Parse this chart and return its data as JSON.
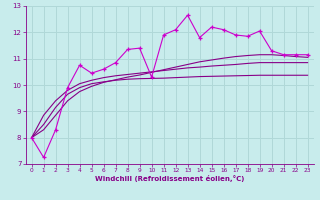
{
  "xlabel": "Windchill (Refroidissement éolien,°C)",
  "bg_color": "#c8ecec",
  "grid_color": "#b0d8d8",
  "line_color": "#cc00cc",
  "line_color2": "#880088",
  "x_data": [
    0,
    1,
    2,
    3,
    4,
    5,
    6,
    7,
    8,
    9,
    10,
    11,
    12,
    13,
    14,
    15,
    16,
    17,
    18,
    19,
    20,
    21,
    22,
    23
  ],
  "y_scatter": [
    8.0,
    7.25,
    8.3,
    9.9,
    10.75,
    10.45,
    10.6,
    10.85,
    11.35,
    11.4,
    10.3,
    11.9,
    12.1,
    12.65,
    11.8,
    12.2,
    12.1,
    11.9,
    11.85,
    12.05,
    11.3,
    11.15,
    11.15,
    11.15
  ],
  "y_smooth1": [
    8.0,
    8.5,
    9.15,
    9.65,
    9.9,
    10.05,
    10.12,
    10.18,
    10.22,
    10.24,
    10.25,
    10.26,
    10.28,
    10.3,
    10.32,
    10.33,
    10.34,
    10.35,
    10.36,
    10.37,
    10.37,
    10.37,
    10.37,
    10.37
  ],
  "y_smooth2": [
    8.0,
    8.85,
    9.4,
    9.8,
    10.05,
    10.18,
    10.28,
    10.35,
    10.4,
    10.45,
    10.5,
    10.55,
    10.6,
    10.65,
    10.68,
    10.72,
    10.75,
    10.78,
    10.82,
    10.85,
    10.85,
    10.85,
    10.85,
    10.85
  ],
  "y_smooth3": [
    8.0,
    8.3,
    8.85,
    9.4,
    9.75,
    9.95,
    10.1,
    10.2,
    10.3,
    10.38,
    10.48,
    10.58,
    10.68,
    10.78,
    10.88,
    10.95,
    11.02,
    11.08,
    11.12,
    11.15,
    11.15,
    11.12,
    11.08,
    11.05
  ],
  "ylim": [
    7,
    13
  ],
  "xlim": [
    -0.5,
    23.5
  ],
  "yticks": [
    7,
    8,
    9,
    10,
    11,
    12,
    13
  ],
  "xticks": [
    0,
    1,
    2,
    3,
    4,
    5,
    6,
    7,
    8,
    9,
    10,
    11,
    12,
    13,
    14,
    15,
    16,
    17,
    18,
    19,
    20,
    21,
    22,
    23
  ]
}
